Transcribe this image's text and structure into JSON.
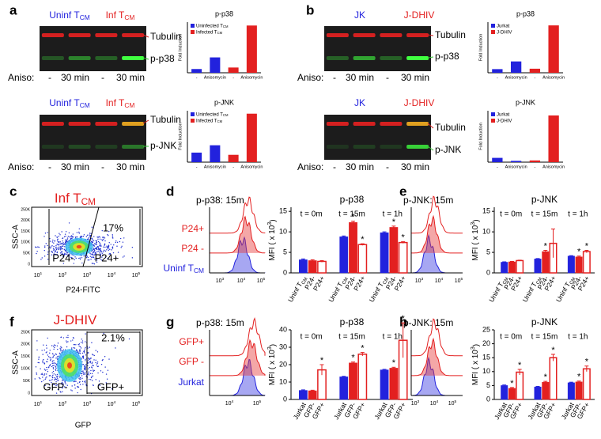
{
  "letters": [
    "a",
    "b",
    "c",
    "d",
    "e",
    "f",
    "g",
    "h"
  ],
  "blots": [
    {
      "headers": [
        {
          "text": "Uninf T",
          "sub": "CM",
          "color": "#2222dd"
        },
        {
          "text": "Inf T",
          "sub": "CM",
          "color": "#e32020"
        }
      ],
      "bands": [
        "Tubulin",
        "p-p38"
      ],
      "row_label": "Aniso:",
      "lanes": [
        "-",
        "30 min",
        "-",
        "30 min"
      ]
    },
    {
      "headers": [
        {
          "text": "Uninf T",
          "sub": "CM",
          "color": "#2222dd"
        },
        {
          "text": "Inf T",
          "sub": "CM",
          "color": "#e32020"
        }
      ],
      "bands": [
        "Tubulin",
        "p-JNK"
      ],
      "row_label": "Aniso:",
      "lanes": [
        "-",
        "30 min",
        "-",
        "30 min"
      ]
    },
    {
      "headers": [
        {
          "text": "JK",
          "color": "#2222dd"
        },
        {
          "text": "J-DHIV",
          "color": "#e32020"
        }
      ],
      "bands": [
        "Tubulin",
        "p-p38"
      ],
      "row_label": "Aniso:",
      "lanes": [
        "-",
        "30 min",
        "-",
        "30 min"
      ]
    },
    {
      "headers": [
        {
          "text": "JK",
          "color": "#2222dd"
        },
        {
          "text": "J-DHIV",
          "color": "#e32020"
        }
      ],
      "bands": [
        "Tubulin",
        "p-JNK"
      ],
      "row_label": "Aniso:",
      "lanes": [
        "-",
        "30 min",
        "-",
        "30 min"
      ]
    }
  ],
  "fold_charts": [
    {
      "type": "bar",
      "title": "p-p38",
      "y_label": "Fold Induction",
      "categories": [
        "-",
        "Anisomycin"
      ],
      "ylim": [
        0,
        13.5
      ],
      "series": [
        {
          "name": "Uninfected T",
          "sub": "CM",
          "color": "#2222dd",
          "values": [
            1.0,
            4.1
          ]
        },
        {
          "name": "Infected T",
          "sub": "CM",
          "color": "#e32020",
          "values": [
            1.4,
            12.6
          ]
        }
      ]
    },
    {
      "type": "bar",
      "title": "p-JNK",
      "y_label": "Fold Induction",
      "categories": [
        "-",
        "Anisomycin"
      ],
      "ylim": [
        0,
        7
      ],
      "series": [
        {
          "name": "Uninfected T",
          "sub": "CM",
          "color": "#2222dd",
          "values": [
            1.3,
            2.3
          ]
        },
        {
          "name": "Infected T",
          "sub": "CM",
          "color": "#e32020",
          "values": [
            1.0,
            6.6
          ]
        }
      ]
    },
    {
      "type": "bar",
      "title": "p-p38",
      "y_label": "Fold Induction",
      "categories": [
        "-",
        "Anisomycin"
      ],
      "ylim": [
        0,
        12.5
      ],
      "series": [
        {
          "name": "Jurkat",
          "color": "#2222dd",
          "values": [
            0.9,
            2.8
          ]
        },
        {
          "name": "J-DHIV",
          "color": "#e32020",
          "values": [
            1.0,
            11.7
          ]
        }
      ]
    },
    {
      "type": "bar",
      "title": "p-JNK",
      "y_label": "Fold Induction",
      "categories": [
        "-",
        "Anisomycin"
      ],
      "ylim": [
        0,
        12
      ],
      "series": [
        {
          "name": "Jurkat",
          "color": "#2222dd",
          "values": [
            1.0,
            0.3
          ]
        },
        {
          "name": "J-DHIV",
          "color": "#e32020",
          "values": [
            0.4,
            10.9
          ]
        }
      ]
    }
  ],
  "flow_plots": [
    {
      "title": {
        "text": "Inf T",
        "sub": "CM"
      },
      "title_color": "#e32020",
      "percent": "17%",
      "gates": [
        "P24-",
        "P24+"
      ],
      "x_label": "P24-FITC",
      "y_label": "SSC-A",
      "xtick_labels": [
        {
          "text": "10",
          "sup": "1"
        },
        {
          "text": "10",
          "sup": "2"
        },
        {
          "text": "10",
          "sup": "3"
        },
        {
          "text": "10",
          "sup": "4"
        },
        {
          "text": "10",
          "sup": "5"
        }
      ],
      "ytick_labels": [
        "0",
        "50K",
        "100K",
        "150K",
        "200K",
        "250K"
      ]
    },
    {
      "title": {
        "text": "J-DHIV"
      },
      "title_color": "#e32020",
      "percent": "2.1%",
      "gates": [
        "GFP-",
        "GFP+"
      ],
      "x_label": "GFP",
      "y_label": "SSC-A",
      "xtick_labels": [
        {
          "text": "10",
          "sup": "1"
        },
        {
          "text": "10",
          "sup": "2"
        },
        {
          "text": "10",
          "sup": "3"
        },
        {
          "text": "10",
          "sup": "4"
        },
        {
          "text": "10",
          "sup": "5"
        }
      ],
      "ytick_labels": [
        "0",
        "50K",
        "100K",
        "150K",
        "200K",
        "250K"
      ]
    }
  ],
  "histograms": [
    {
      "title": "p-p38: 15m",
      "labels": [
        {
          "text": "P24+",
          "color": "#e32020"
        },
        {
          "text": "P24 -",
          "color": "#e32020"
        },
        {
          "text": "Uninf T",
          "sub": "CM",
          "color": "#2222dd"
        }
      ],
      "xtick_labels": [
        {
          "text": "10",
          "sup": "3"
        },
        {
          "text": "10",
          "sup": "4"
        },
        {
          "text": "10",
          "sup": "5"
        }
      ]
    },
    {
      "title": "p-JNK: 15m",
      "labels": [],
      "xtick_labels": [
        {
          "text": "10",
          "sup": "3"
        },
        {
          "text": "10",
          "sup": "4"
        },
        {
          "text": "10",
          "sup": "5"
        }
      ]
    },
    {
      "title": "p-p38: 15m",
      "labels": [
        {
          "text": "GFP+",
          "color": "#e32020"
        },
        {
          "text": "GFP -",
          "color": "#e32020"
        },
        {
          "text": "Jurkat",
          "color": "#2222dd"
        }
      ],
      "xtick_labels": [
        {
          "text": "10",
          "sup": "4"
        },
        {
          "text": "10",
          "sup": "5"
        }
      ]
    },
    {
      "title": "p-JNK: 15m",
      "labels": [],
      "xtick_labels": [
        {
          "text": "10",
          "sup": "3"
        },
        {
          "text": "10",
          "sup": "4"
        },
        {
          "text": "10",
          "sup": "5"
        }
      ]
    }
  ],
  "mfi_charts": [
    {
      "type": "bar",
      "title": "p-p38",
      "y_label": {
        "text": "MFI ( x 10",
        "sup": "3",
        "end": ")"
      },
      "groups": [
        "t = 0m",
        "t = 15m",
        "t = 1h"
      ],
      "ylim": [
        0,
        16
      ],
      "yticks": [
        0,
        5,
        10,
        15
      ],
      "series": [
        {
          "name": "Uninf T",
          "sub": "CM",
          "color": "#2222dd",
          "filled": true,
          "values": [
            3.2,
            8.8,
            9.8
          ],
          "errors": [
            0.2,
            0.2,
            0.2
          ],
          "sig": [
            null,
            null,
            null
          ]
        },
        {
          "name": "P24-",
          "color": "#e32020",
          "filled": true,
          "values": [
            3.0,
            12.3,
            11.1
          ],
          "errors": [
            0.2,
            0.3,
            0.3
          ],
          "sig": [
            null,
            "*",
            "*"
          ]
        },
        {
          "name": "P24+",
          "color": "#e32020",
          "filled": false,
          "values": [
            2.8,
            6.9,
            7.4
          ],
          "errors": [
            0.2,
            0.2,
            0.2
          ],
          "sig": [
            null,
            "*",
            "*"
          ]
        }
      ]
    },
    {
      "type": "bar",
      "title": "p-JNK",
      "y_label": {
        "text": "MFI ( x 10",
        "sup": "3",
        "end": ")"
      },
      "groups": [
        "t = 0m",
        "t = 15m",
        "t = 1h"
      ],
      "ylim": [
        0,
        16
      ],
      "yticks": [
        0,
        5,
        10,
        15
      ],
      "series": [
        {
          "name": "Uninf T",
          "sub": "CM",
          "color": "#2222dd",
          "filled": true,
          "values": [
            2.6,
            3.4,
            4.1
          ],
          "errors": [
            0.1,
            0.1,
            0.1
          ],
          "sig": [
            null,
            null,
            null
          ]
        },
        {
          "name": "P24-",
          "color": "#e32020",
          "filled": true,
          "values": [
            2.7,
            5.2,
            3.9
          ],
          "errors": [
            0.1,
            0.3,
            0.2
          ],
          "sig": [
            null,
            "*",
            "*"
          ]
        },
        {
          "name": "P24+",
          "color": "#e32020",
          "filled": false,
          "values": [
            3.0,
            7.2,
            5.2
          ],
          "errors": [
            0.1,
            3.5,
            0.3
          ],
          "sig": [
            null,
            null,
            "*"
          ]
        }
      ]
    },
    {
      "type": "bar",
      "title": "p-p38",
      "y_label": {
        "text": "MFI ( x 10",
        "sup": "3",
        "end": ")"
      },
      "groups": [
        "t = 0m",
        "t = 15m",
        "t = 1h"
      ],
      "ylim": [
        0,
        40
      ],
      "yticks": [
        0,
        10,
        20,
        30,
        40
      ],
      "series": [
        {
          "name": "Jurkat",
          "color": "#2222dd",
          "filled": true,
          "values": [
            5.2,
            13,
            17
          ],
          "errors": [
            0.3,
            0.3,
            0.3
          ],
          "sig": [
            null,
            null,
            null
          ]
        },
        {
          "name": "GFP-",
          "color": "#e32020",
          "filled": true,
          "values": [
            5,
            21,
            18
          ],
          "errors": [
            0.3,
            0.5,
            0.5
          ],
          "sig": [
            null,
            "*",
            "*"
          ]
        },
        {
          "name": "GFP+",
          "color": "#e32020",
          "filled": false,
          "values": [
            17,
            26,
            34
          ],
          "errors": [
            3,
            1,
            10
          ],
          "sig": [
            "*",
            "*",
            "*"
          ]
        }
      ]
    },
    {
      "type": "bar",
      "title": "p-JNK",
      "y_label": {
        "text": "MFI ( x 10",
        "sup": "3",
        "end": ")"
      },
      "groups": [
        "t = 0m",
        "t = 15m",
        "t = 1h"
      ],
      "ylim": [
        0,
        25
      ],
      "yticks": [
        0,
        5,
        10,
        15,
        20,
        25
      ],
      "series": [
        {
          "name": "Jurkat",
          "color": "#2222dd",
          "filled": true,
          "values": [
            5,
            4.5,
            6
          ],
          "errors": [
            0.2,
            0.2,
            0.2
          ],
          "sig": [
            null,
            null,
            null
          ]
        },
        {
          "name": "GFP-",
          "color": "#e32020",
          "filled": true,
          "values": [
            4,
            6.2,
            6.3
          ],
          "errors": [
            0.3,
            0.3,
            0.3
          ],
          "sig": [
            "*",
            "*",
            "*"
          ]
        },
        {
          "name": "GFP+",
          "color": "#e32020",
          "filled": false,
          "values": [
            9.8,
            15,
            11
          ],
          "errors": [
            1,
            1.2,
            1
          ],
          "sig": [
            "*",
            "*",
            "*"
          ]
        }
      ]
    }
  ]
}
